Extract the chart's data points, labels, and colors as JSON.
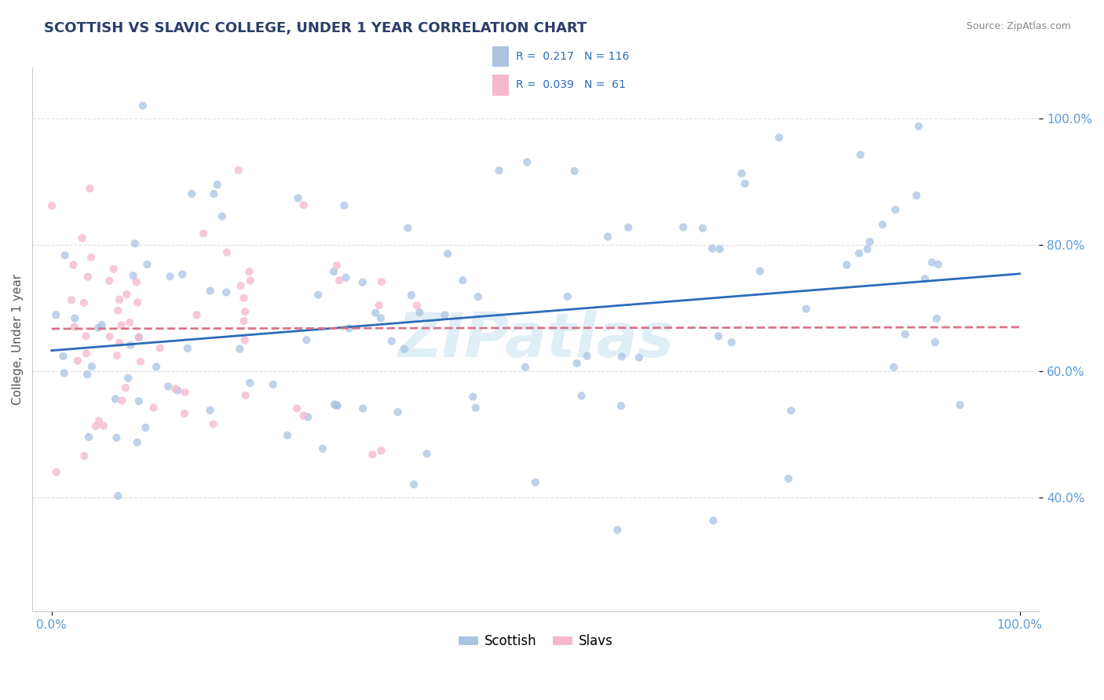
{
  "title": "SCOTTISH VS SLAVIC COLLEGE, UNDER 1 YEAR CORRELATION CHART",
  "source": "Source: ZipAtlas.com",
  "ylabel": "College, Under 1 year",
  "xlim": [
    -0.02,
    1.02
  ],
  "ylim": [
    0.22,
    1.08
  ],
  "x_ticks": [
    0.0,
    1.0
  ],
  "y_ticks": [
    0.4,
    0.6,
    0.8,
    1.0
  ],
  "background_color": "#ffffff",
  "scottish_color": "#aac4e2",
  "slavic_color": "#f5b8cc",
  "scottish_line_color": "#2b6cb8",
  "slavic_line_color": "#d9748a",
  "title_color": "#2c3e6b",
  "source_color": "#888888",
  "tick_color": "#5b9bd5",
  "ylabel_color": "#555555",
  "grid_color": "#dddddd",
  "watermark_color": "#cce4f0",
  "scottish_R": 0.217,
  "slavic_R": 0.039,
  "scottish_N": 116,
  "slavic_N": 61,
  "legend_R_N_color": "#2b6cb8",
  "legend_label_color": "#333333",
  "marker_size": 55,
  "marker_alpha": 0.75,
  "line_width": 2.0
}
